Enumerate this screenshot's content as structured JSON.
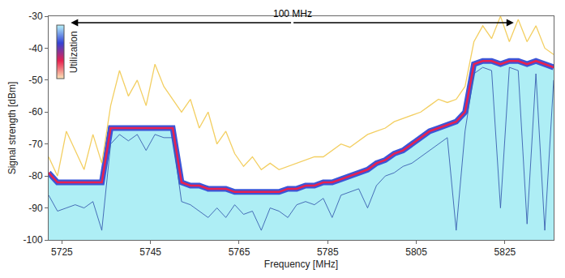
{
  "chart_data": {
    "type": "line",
    "x_label": "Frequency [MHz]",
    "y_label": "Signal strength [dBm]",
    "xlim": [
      5722,
      5836
    ],
    "xticks": [
      5725,
      5745,
      5765,
      5785,
      5805,
      5825
    ],
    "ylim": [
      -100,
      -30
    ],
    "yticks": [
      -100,
      -90,
      -80,
      -70,
      -60,
      -50,
      -40,
      -30
    ],
    "grid": false,
    "x": [
      5722,
      5724,
      5726,
      5728,
      5730,
      5732,
      5734,
      5736,
      5738,
      5740,
      5742,
      5744,
      5746,
      5748,
      5750,
      5752,
      5754,
      5756,
      5758,
      5760,
      5762,
      5764,
      5766,
      5768,
      5770,
      5772,
      5774,
      5776,
      5778,
      5780,
      5782,
      5784,
      5786,
      5788,
      5790,
      5792,
      5794,
      5796,
      5798,
      5800,
      5802,
      5804,
      5806,
      5808,
      5810,
      5812,
      5814,
      5816,
      5818,
      5820,
      5822,
      5824,
      5826,
      5828,
      5830,
      5832,
      5834,
      5836
    ],
    "series": [
      {
        "type": "line",
        "color": "#f3cf62",
        "values": [
          -74,
          -80,
          -66,
          -72,
          -78,
          -67,
          -76,
          -58,
          -47,
          -55,
          -50,
          -58,
          -45,
          -52,
          -56,
          -60,
          -56,
          -65,
          -60,
          -70,
          -66,
          -73,
          -77,
          -74,
          -78,
          -76,
          -78,
          -77,
          -76,
          -75,
          -74,
          -74,
          -72,
          -70,
          -71,
          -69,
          -67,
          -66,
          -65,
          -63,
          -62,
          -61,
          -60,
          -58,
          -56,
          -57,
          -56,
          -52,
          -38,
          -33,
          -37,
          -30,
          -38,
          -31,
          -38,
          -33,
          -40,
          -42
        ]
      },
      {
        "type": "area",
        "color": "#e8214f",
        "values": [
          -79,
          -82,
          -82,
          -82,
          -82,
          -82,
          -82,
          -65,
          -65,
          -65,
          -65,
          -65,
          -65,
          -65,
          -65,
          -82,
          -83,
          -83,
          -84,
          -84,
          -84,
          -85,
          -85,
          -85,
          -85,
          -85,
          -85,
          -84,
          -84,
          -83,
          -83,
          -82,
          -82,
          -81,
          -80,
          -79,
          -78,
          -76,
          -75,
          -73,
          -72,
          -70,
          -68,
          -66,
          -65,
          -64,
          -63,
          -60,
          -45,
          -44,
          -44,
          -45,
          -44,
          -44,
          -45,
          -44,
          -45,
          -46
        ]
      },
      {
        "type": "line",
        "color": "#3a5fb0",
        "values": [
          -86,
          -91,
          -90,
          -89,
          -90,
          -88,
          -97,
          -70,
          -67,
          -69,
          -67,
          -72,
          -67,
          -68,
          -68,
          -88,
          -89,
          -91,
          -93,
          -90,
          -93,
          -89,
          -92,
          -91,
          -97,
          -90,
          -91,
          -93,
          -89,
          -88,
          -89,
          -87,
          -93,
          -86,
          -85,
          -84,
          -90,
          -83,
          -80,
          -79,
          -77,
          -76,
          -74,
          -72,
          -70,
          -68,
          -97,
          -66,
          -48,
          -46,
          -47,
          -90,
          -46,
          -47,
          -95,
          -48,
          -97,
          -50
        ]
      }
    ],
    "annotations": [
      {
        "text": "100 MHz",
        "x0": 5727,
        "x1": 5827,
        "y": -32
      }
    ],
    "color_bar": {
      "label": "Utilization",
      "colors": [
        "#fbe6b8",
        "#e8214f",
        "#3343d6",
        "#b6f2fa"
      ]
    }
  }
}
